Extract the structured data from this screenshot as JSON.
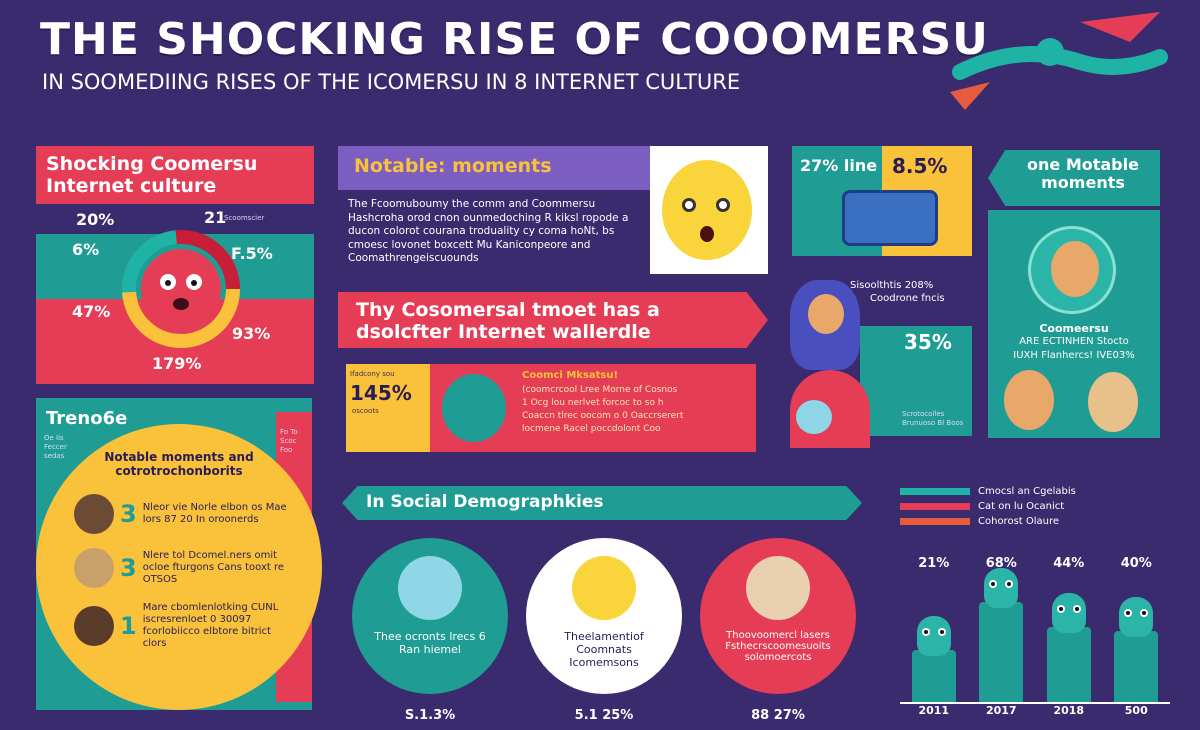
{
  "header": {
    "title": "THE SHOCKING RISE OF COOOMERSU",
    "subtitle": "IN SOOMEDIING RISES OF THE ICOMERSU IN 8 INTERNET CULTURE"
  },
  "left_panel": {
    "heading": "Shocking Coomersu Internet culture",
    "stats": [
      "20%",
      "21",
      "6%",
      "F.5%",
      "47%",
      "93%",
      "179%"
    ],
    "stat_note": "Scoomscier"
  },
  "notable_panel": {
    "heading": "Notable: moments",
    "body": "The Fcoomuboumy the comm and Coommersu Hashcroha orod cnon ounmedoching R kiksl ropode a ducon colorot courana troduality cy coma hoNt, bs cmoesc lovonet boxcett Mu Kaniconpeore and Coomathrengeiscuounds"
  },
  "highlight_banner": {
    "text": "Thy Cosomersal tmoet has a dsolcfter Internet wallerdle"
  },
  "stat_card": {
    "value": "145%",
    "label": "Ifadcony sou",
    "sub": "oscoots",
    "title": "Coomci Mksatsu!",
    "lines": [
      "(coomcrcool Lree Morne of Cosnos",
      "1 Ocg lou nerlvet forcoc to so h",
      "Coaccn tlrec oocom o 0 Oaccrserert",
      "locmene Racel poccdolont Coo"
    ]
  },
  "top_right": {
    "left_value": "27% line",
    "right_value": "8.5%",
    "heading": "one Motable moments",
    "caption": "Sisoolthtis 208%",
    "caption2": "Coodrone fncis",
    "value2": "35%",
    "notes": "Scrotocolles Brunuoso Bl Boos"
  },
  "profile_panel": {
    "name": "Coomeersu",
    "line1": "ARE ECTINHEN Stocto",
    "line2": "IUXH Flanhercs! IVE03%"
  },
  "trends_panel": {
    "heading": "Treno6e",
    "circle_title": "Notable moments and cotrotrochonborits",
    "items": [
      {
        "num": "3",
        "text": "Nleor vie Norle elbon os Mae lors 87 20 In oroonerds"
      },
      {
        "num": "3",
        "text": "Nlere tol Dcomel.ners omit ocloe fturgons Cans tooxt re OTSOS"
      },
      {
        "num": "1",
        "text": "Mare cbomlenlotking CUNL iscresrenloet 0 30097 fcorlobiicco elbtore bitrict clors"
      }
    ],
    "side_left": "Oe Iis Feccer sedas",
    "side_right": "Fo To Scoc Foo"
  },
  "social": {
    "heading": "In Social Demographkies",
    "cards": [
      {
        "caption": "Thee ocronts lrecs 6 Ran hiemel",
        "value": "S.1.3%"
      },
      {
        "caption": "Theelamentiof Coomnats Icomemsons",
        "value": "5.1 25%"
      },
      {
        "caption": "Thoovoomercl lasers Fsthecrscoomesuoits solomoercots",
        "value": "88 27%"
      }
    ]
  },
  "bar_chart": {
    "legend": [
      "Cmocsl an Cgelabis",
      "Cat on lu Ocanict",
      "Cohorost Olaure"
    ],
    "categories": [
      "2011",
      "2017",
      "2018",
      "500"
    ],
    "values": [
      21,
      68,
      44,
      40
    ],
    "labels": [
      "21%",
      "68%",
      "44%",
      "40%"
    ]
  },
  "colors": {
    "teal": "#1f9c93",
    "red": "#e63d57",
    "yellow": "#f9c23a",
    "purple": "#7c5ec2",
    "bg": "#3a2a6e"
  }
}
